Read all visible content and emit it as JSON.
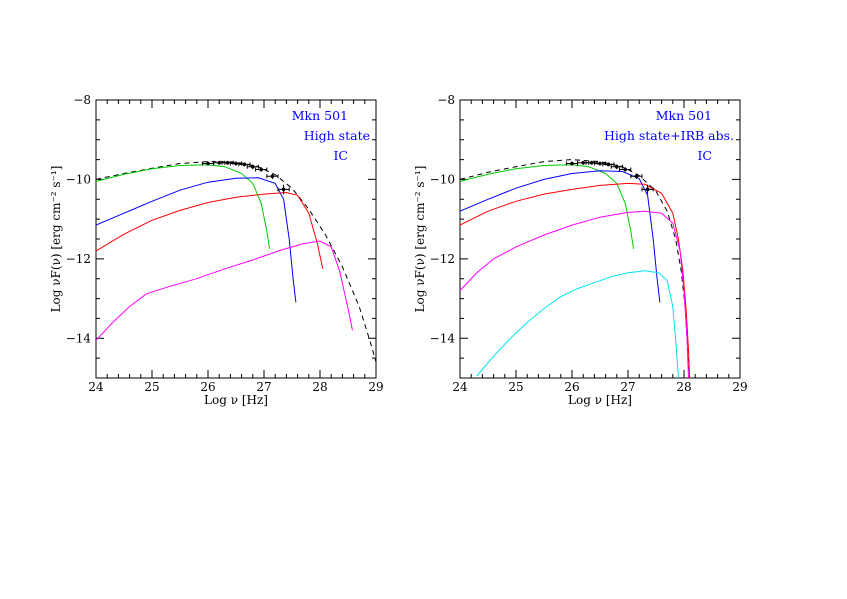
{
  "chart_data": [
    {
      "type": "line",
      "panel": "left",
      "xlabel": "Log ν [Hz]",
      "ylabel": "Log νF(ν) [erg cm⁻² s⁻¹]",
      "xlim": [
        24,
        29
      ],
      "ylim": [
        -15,
        -8
      ],
      "x_ticks": [
        24,
        25,
        26,
        27,
        28,
        29
      ],
      "x_tick_labels": [
        "24",
        "25",
        "26",
        "27",
        "28",
        "29"
      ],
      "y_ticks": [
        -14,
        -12,
        -10,
        -8
      ],
      "y_tick_labels": [
        "−14",
        "−12",
        "−10",
        "−8"
      ],
      "annotations": [
        "Mkn 501",
        "High state",
        "IC"
      ],
      "series": [
        {
          "color": "#000000",
          "dashed": true,
          "points": [
            [
              24.0,
              -10.0
            ],
            [
              24.5,
              -9.85
            ],
            [
              25.0,
              -9.72
            ],
            [
              25.5,
              -9.6
            ],
            [
              26.0,
              -9.55
            ],
            [
              26.5,
              -9.56
            ],
            [
              26.9,
              -9.68
            ],
            [
              27.2,
              -9.88
            ],
            [
              27.5,
              -10.22
            ],
            [
              27.8,
              -10.75
            ],
            [
              28.1,
              -11.4
            ],
            [
              28.4,
              -12.2
            ],
            [
              28.7,
              -13.2
            ],
            [
              28.9,
              -14.1
            ],
            [
              29.0,
              -14.6
            ]
          ]
        },
        {
          "color": "#00cc00",
          "dashed": false,
          "points": [
            [
              24.0,
              -10.05
            ],
            [
              24.5,
              -9.87
            ],
            [
              25.0,
              -9.73
            ],
            [
              25.5,
              -9.65
            ],
            [
              26.0,
              -9.63
            ],
            [
              26.3,
              -9.68
            ],
            [
              26.6,
              -9.85
            ],
            [
              26.8,
              -10.1
            ],
            [
              26.95,
              -10.6
            ],
            [
              27.05,
              -11.3
            ],
            [
              27.1,
              -11.75
            ]
          ]
        },
        {
          "color": "#0000ff",
          "dashed": false,
          "points": [
            [
              24.0,
              -11.15
            ],
            [
              24.5,
              -10.85
            ],
            [
              25.0,
              -10.55
            ],
            [
              25.5,
              -10.27
            ],
            [
              26.0,
              -10.07
            ],
            [
              26.5,
              -9.97
            ],
            [
              26.9,
              -9.96
            ],
            [
              27.2,
              -10.1
            ],
            [
              27.35,
              -10.5
            ],
            [
              27.45,
              -11.5
            ],
            [
              27.52,
              -12.5
            ],
            [
              27.57,
              -13.1
            ]
          ]
        },
        {
          "color": "#ff0000",
          "dashed": false,
          "points": [
            [
              24.0,
              -11.8
            ],
            [
              24.5,
              -11.38
            ],
            [
              25.0,
              -11.03
            ],
            [
              25.5,
              -10.78
            ],
            [
              26.0,
              -10.58
            ],
            [
              26.5,
              -10.45
            ],
            [
              27.0,
              -10.37
            ],
            [
              27.4,
              -10.33
            ],
            [
              27.6,
              -10.4
            ],
            [
              27.8,
              -10.85
            ],
            [
              27.95,
              -11.6
            ],
            [
              28.05,
              -12.25
            ]
          ]
        },
        {
          "color": "#ff00ff",
          "dashed": false,
          "points": [
            [
              24.0,
              -14.05
            ],
            [
              24.3,
              -13.6
            ],
            [
              24.6,
              -13.2
            ],
            [
              24.9,
              -12.88
            ],
            [
              25.3,
              -12.7
            ],
            [
              25.8,
              -12.5
            ],
            [
              26.3,
              -12.25
            ],
            [
              26.8,
              -12.03
            ],
            [
              27.3,
              -11.78
            ],
            [
              27.7,
              -11.62
            ],
            [
              28.0,
              -11.55
            ],
            [
              28.2,
              -11.7
            ],
            [
              28.35,
              -12.3
            ],
            [
              28.5,
              -13.25
            ],
            [
              28.58,
              -13.8
            ]
          ]
        }
      ],
      "observed_points": [
        {
          "x": 26.0,
          "y": -9.6,
          "xerr": 0.1,
          "yerr": 0.05
        },
        {
          "x": 26.2,
          "y": -9.58,
          "xerr": 0.1,
          "yerr": 0.05
        },
        {
          "x": 26.35,
          "y": -9.58,
          "xerr": 0.1,
          "yerr": 0.05
        },
        {
          "x": 26.5,
          "y": -9.6,
          "xerr": 0.1,
          "yerr": 0.05
        },
        {
          "x": 26.65,
          "y": -9.62,
          "xerr": 0.1,
          "yerr": 0.05
        },
        {
          "x": 26.8,
          "y": -9.68,
          "xerr": 0.1,
          "yerr": 0.06
        },
        {
          "x": 26.95,
          "y": -9.75,
          "xerr": 0.1,
          "yerr": 0.06
        },
        {
          "x": 27.15,
          "y": -9.92,
          "xerr": 0.1,
          "yerr": 0.07
        },
        {
          "x": 27.35,
          "y": -10.25,
          "xerr": 0.1,
          "yerr": 0.12
        }
      ]
    },
    {
      "type": "line",
      "panel": "right",
      "xlabel": "Log ν [Hz]",
      "ylabel": "Log νF(ν) [erg cm⁻² s⁻¹]",
      "xlim": [
        24,
        29
      ],
      "ylim": [
        -15,
        -8
      ],
      "x_ticks": [
        24,
        25,
        26,
        27,
        28,
        29
      ],
      "x_tick_labels": [
        "24",
        "25",
        "26",
        "27",
        "28",
        "29"
      ],
      "y_ticks": [
        -14,
        -12,
        -10,
        -8
      ],
      "y_tick_labels": [
        "−14",
        "−12",
        "−10",
        "−8"
      ],
      "annotations": [
        "Mkn 501",
        "High state+IRB abs.",
        "IC"
      ],
      "series": [
        {
          "color": "#000000",
          "dashed": true,
          "points": [
            [
              24.0,
              -10.0
            ],
            [
              24.5,
              -9.82
            ],
            [
              25.0,
              -9.68
            ],
            [
              25.5,
              -9.55
            ],
            [
              26.0,
              -9.5
            ],
            [
              26.5,
              -9.55
            ],
            [
              26.9,
              -9.68
            ],
            [
              27.2,
              -9.9
            ],
            [
              27.5,
              -10.3
            ],
            [
              27.7,
              -10.8
            ],
            [
              27.85,
              -11.5
            ],
            [
              27.95,
              -12.3
            ],
            [
              28.02,
              -13.2
            ],
            [
              28.06,
              -14.1
            ],
            [
              28.1,
              -15.0
            ]
          ]
        },
        {
          "color": "#00cc00",
          "dashed": false,
          "points": [
            [
              24.0,
              -10.05
            ],
            [
              24.5,
              -9.87
            ],
            [
              25.0,
              -9.73
            ],
            [
              25.5,
              -9.65
            ],
            [
              26.0,
              -9.63
            ],
            [
              26.3,
              -9.68
            ],
            [
              26.6,
              -9.85
            ],
            [
              26.8,
              -10.1
            ],
            [
              26.95,
              -10.6
            ],
            [
              27.05,
              -11.3
            ],
            [
              27.1,
              -11.75
            ]
          ]
        },
        {
          "color": "#0000ff",
          "dashed": false,
          "points": [
            [
              24.0,
              -10.8
            ],
            [
              24.5,
              -10.5
            ],
            [
              25.0,
              -10.22
            ],
            [
              25.5,
              -10.0
            ],
            [
              26.0,
              -9.85
            ],
            [
              26.5,
              -9.78
            ],
            [
              26.9,
              -9.8
            ],
            [
              27.2,
              -9.98
            ],
            [
              27.35,
              -10.4
            ],
            [
              27.45,
              -11.5
            ],
            [
              27.52,
              -12.5
            ],
            [
              27.57,
              -13.1
            ]
          ]
        },
        {
          "color": "#ff0000",
          "dashed": false,
          "points": [
            [
              24.0,
              -11.15
            ],
            [
              24.5,
              -10.8
            ],
            [
              25.0,
              -10.55
            ],
            [
              25.5,
              -10.37
            ],
            [
              26.0,
              -10.25
            ],
            [
              26.5,
              -10.15
            ],
            [
              27.0,
              -10.1
            ],
            [
              27.3,
              -10.12
            ],
            [
              27.6,
              -10.35
            ],
            [
              27.8,
              -10.85
            ],
            [
              27.9,
              -11.5
            ],
            [
              27.98,
              -12.3
            ],
            [
              28.04,
              -13.3
            ],
            [
              28.08,
              -14.3
            ],
            [
              28.1,
              -15.0
            ]
          ]
        },
        {
          "color": "#ff00ff",
          "dashed": false,
          "points": [
            [
              24.0,
              -12.8
            ],
            [
              24.3,
              -12.35
            ],
            [
              24.6,
              -12.0
            ],
            [
              25.0,
              -11.7
            ],
            [
              25.5,
              -11.4
            ],
            [
              26.0,
              -11.15
            ],
            [
              26.5,
              -10.95
            ],
            [
              27.0,
              -10.83
            ],
            [
              27.3,
              -10.8
            ],
            [
              27.6,
              -10.85
            ],
            [
              27.8,
              -11.1
            ],
            [
              27.93,
              -11.8
            ],
            [
              28.0,
              -12.8
            ],
            [
              28.05,
              -13.9
            ],
            [
              28.08,
              -15.0
            ]
          ]
        },
        {
          "color": "#00e5ee",
          "dashed": false,
          "points": [
            [
              24.3,
              -14.95
            ],
            [
              24.6,
              -14.45
            ],
            [
              24.9,
              -14.0
            ],
            [
              25.2,
              -13.6
            ],
            [
              25.5,
              -13.25
            ],
            [
              25.8,
              -12.95
            ],
            [
              26.1,
              -12.75
            ],
            [
              26.4,
              -12.6
            ],
            [
              26.7,
              -12.45
            ],
            [
              27.0,
              -12.35
            ],
            [
              27.3,
              -12.3
            ],
            [
              27.55,
              -12.35
            ],
            [
              27.7,
              -12.55
            ],
            [
              27.8,
              -13.2
            ],
            [
              27.86,
              -14.2
            ],
            [
              27.9,
              -15.0
            ]
          ]
        }
      ],
      "observed_points": [
        {
          "x": 26.0,
          "y": -9.6,
          "xerr": 0.1,
          "yerr": 0.05
        },
        {
          "x": 26.2,
          "y": -9.58,
          "xerr": 0.1,
          "yerr": 0.05
        },
        {
          "x": 26.35,
          "y": -9.58,
          "xerr": 0.1,
          "yerr": 0.05
        },
        {
          "x": 26.5,
          "y": -9.6,
          "xerr": 0.1,
          "yerr": 0.05
        },
        {
          "x": 26.65,
          "y": -9.62,
          "xerr": 0.1,
          "yerr": 0.05
        },
        {
          "x": 26.8,
          "y": -9.68,
          "xerr": 0.1,
          "yerr": 0.06
        },
        {
          "x": 26.95,
          "y": -9.75,
          "xerr": 0.1,
          "yerr": 0.06
        },
        {
          "x": 27.15,
          "y": -9.92,
          "xerr": 0.1,
          "yerr": 0.07
        },
        {
          "x": 27.35,
          "y": -10.25,
          "xerr": 0.1,
          "yerr": 0.12
        }
      ]
    }
  ]
}
